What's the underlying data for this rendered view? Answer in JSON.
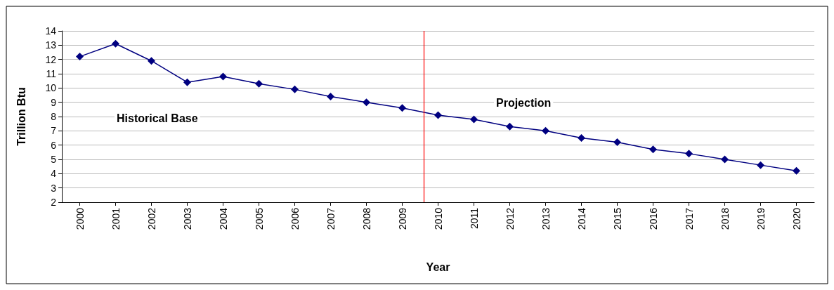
{
  "chart_data": {
    "type": "line",
    "xlabel": "Year",
    "ylabel": "Trillion Btu",
    "x": [
      2000,
      2001,
      2002,
      2003,
      2004,
      2005,
      2006,
      2007,
      2008,
      2009,
      2010,
      2011,
      2012,
      2013,
      2014,
      2015,
      2016,
      2017,
      2018,
      2019,
      2020
    ],
    "series": [
      {
        "color": "#000080",
        "values": [
          12.2,
          13.1,
          11.9,
          10.4,
          10.8,
          10.3,
          9.9,
          9.4,
          9.0,
          8.6,
          8.1,
          7.8,
          7.3,
          7.0,
          6.5,
          6.2,
          5.7,
          5.4,
          5.0,
          4.6,
          4.2
        ]
      }
    ],
    "xlim": [
      1999.5,
      2020.5
    ],
    "xticks": [
      2000,
      2001,
      2002,
      2003,
      2004,
      2005,
      2006,
      2007,
      2008,
      2009,
      2010,
      2011,
      2012,
      2013,
      2014,
      2015,
      2016,
      2017,
      2018,
      2019,
      2020
    ],
    "ylim": [
      2,
      14
    ],
    "yticks": [
      2,
      3,
      4,
      5,
      6,
      7,
      8,
      9,
      10,
      11,
      12,
      13,
      14
    ],
    "ref_lines": [
      {
        "axis": "x",
        "value": 2009.6,
        "color": "#ff0000"
      }
    ],
    "annotations": [
      "Historical Base",
      "Projection"
    ],
    "grid": "y",
    "marker": "diamond",
    "line_style": "solid"
  }
}
